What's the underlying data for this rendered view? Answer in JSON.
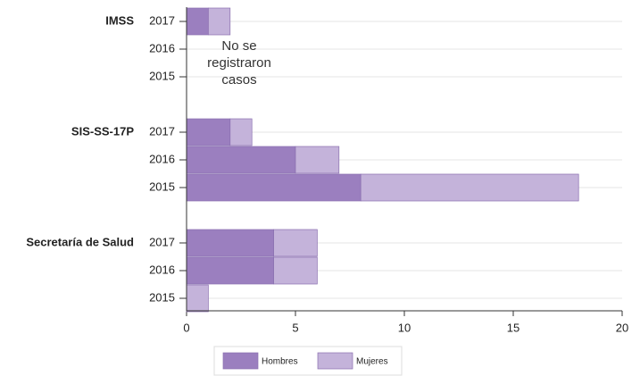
{
  "chart_data": {
    "type": "bar",
    "orientation": "horizontal",
    "stacked": true,
    "groups": [
      {
        "name": "IMSS",
        "categories": [
          "2017",
          "2016",
          "2015"
        ]
      },
      {
        "name": "SIS-SS-17P",
        "categories": [
          "2017",
          "2016",
          "2015"
        ]
      },
      {
        "name": "Secretaría de Salud",
        "categories": [
          "2017",
          "2016",
          "2015"
        ]
      }
    ],
    "series": [
      {
        "name": "Hombres",
        "color": "#9b7fbf",
        "values": [
          1,
          0,
          0,
          2,
          5,
          8,
          4,
          4,
          0
        ]
      },
      {
        "name": "Mujeres",
        "color": "#c4b3da",
        "values": [
          1,
          0,
          0,
          1,
          2,
          10,
          2,
          2,
          1
        ]
      }
    ],
    "annotation": [
      "No se",
      "registraron",
      "casos"
    ],
    "xlim": [
      0,
      20
    ],
    "xticks": [
      0,
      5,
      10,
      15,
      20
    ],
    "grid": true,
    "legend": "bottom"
  }
}
